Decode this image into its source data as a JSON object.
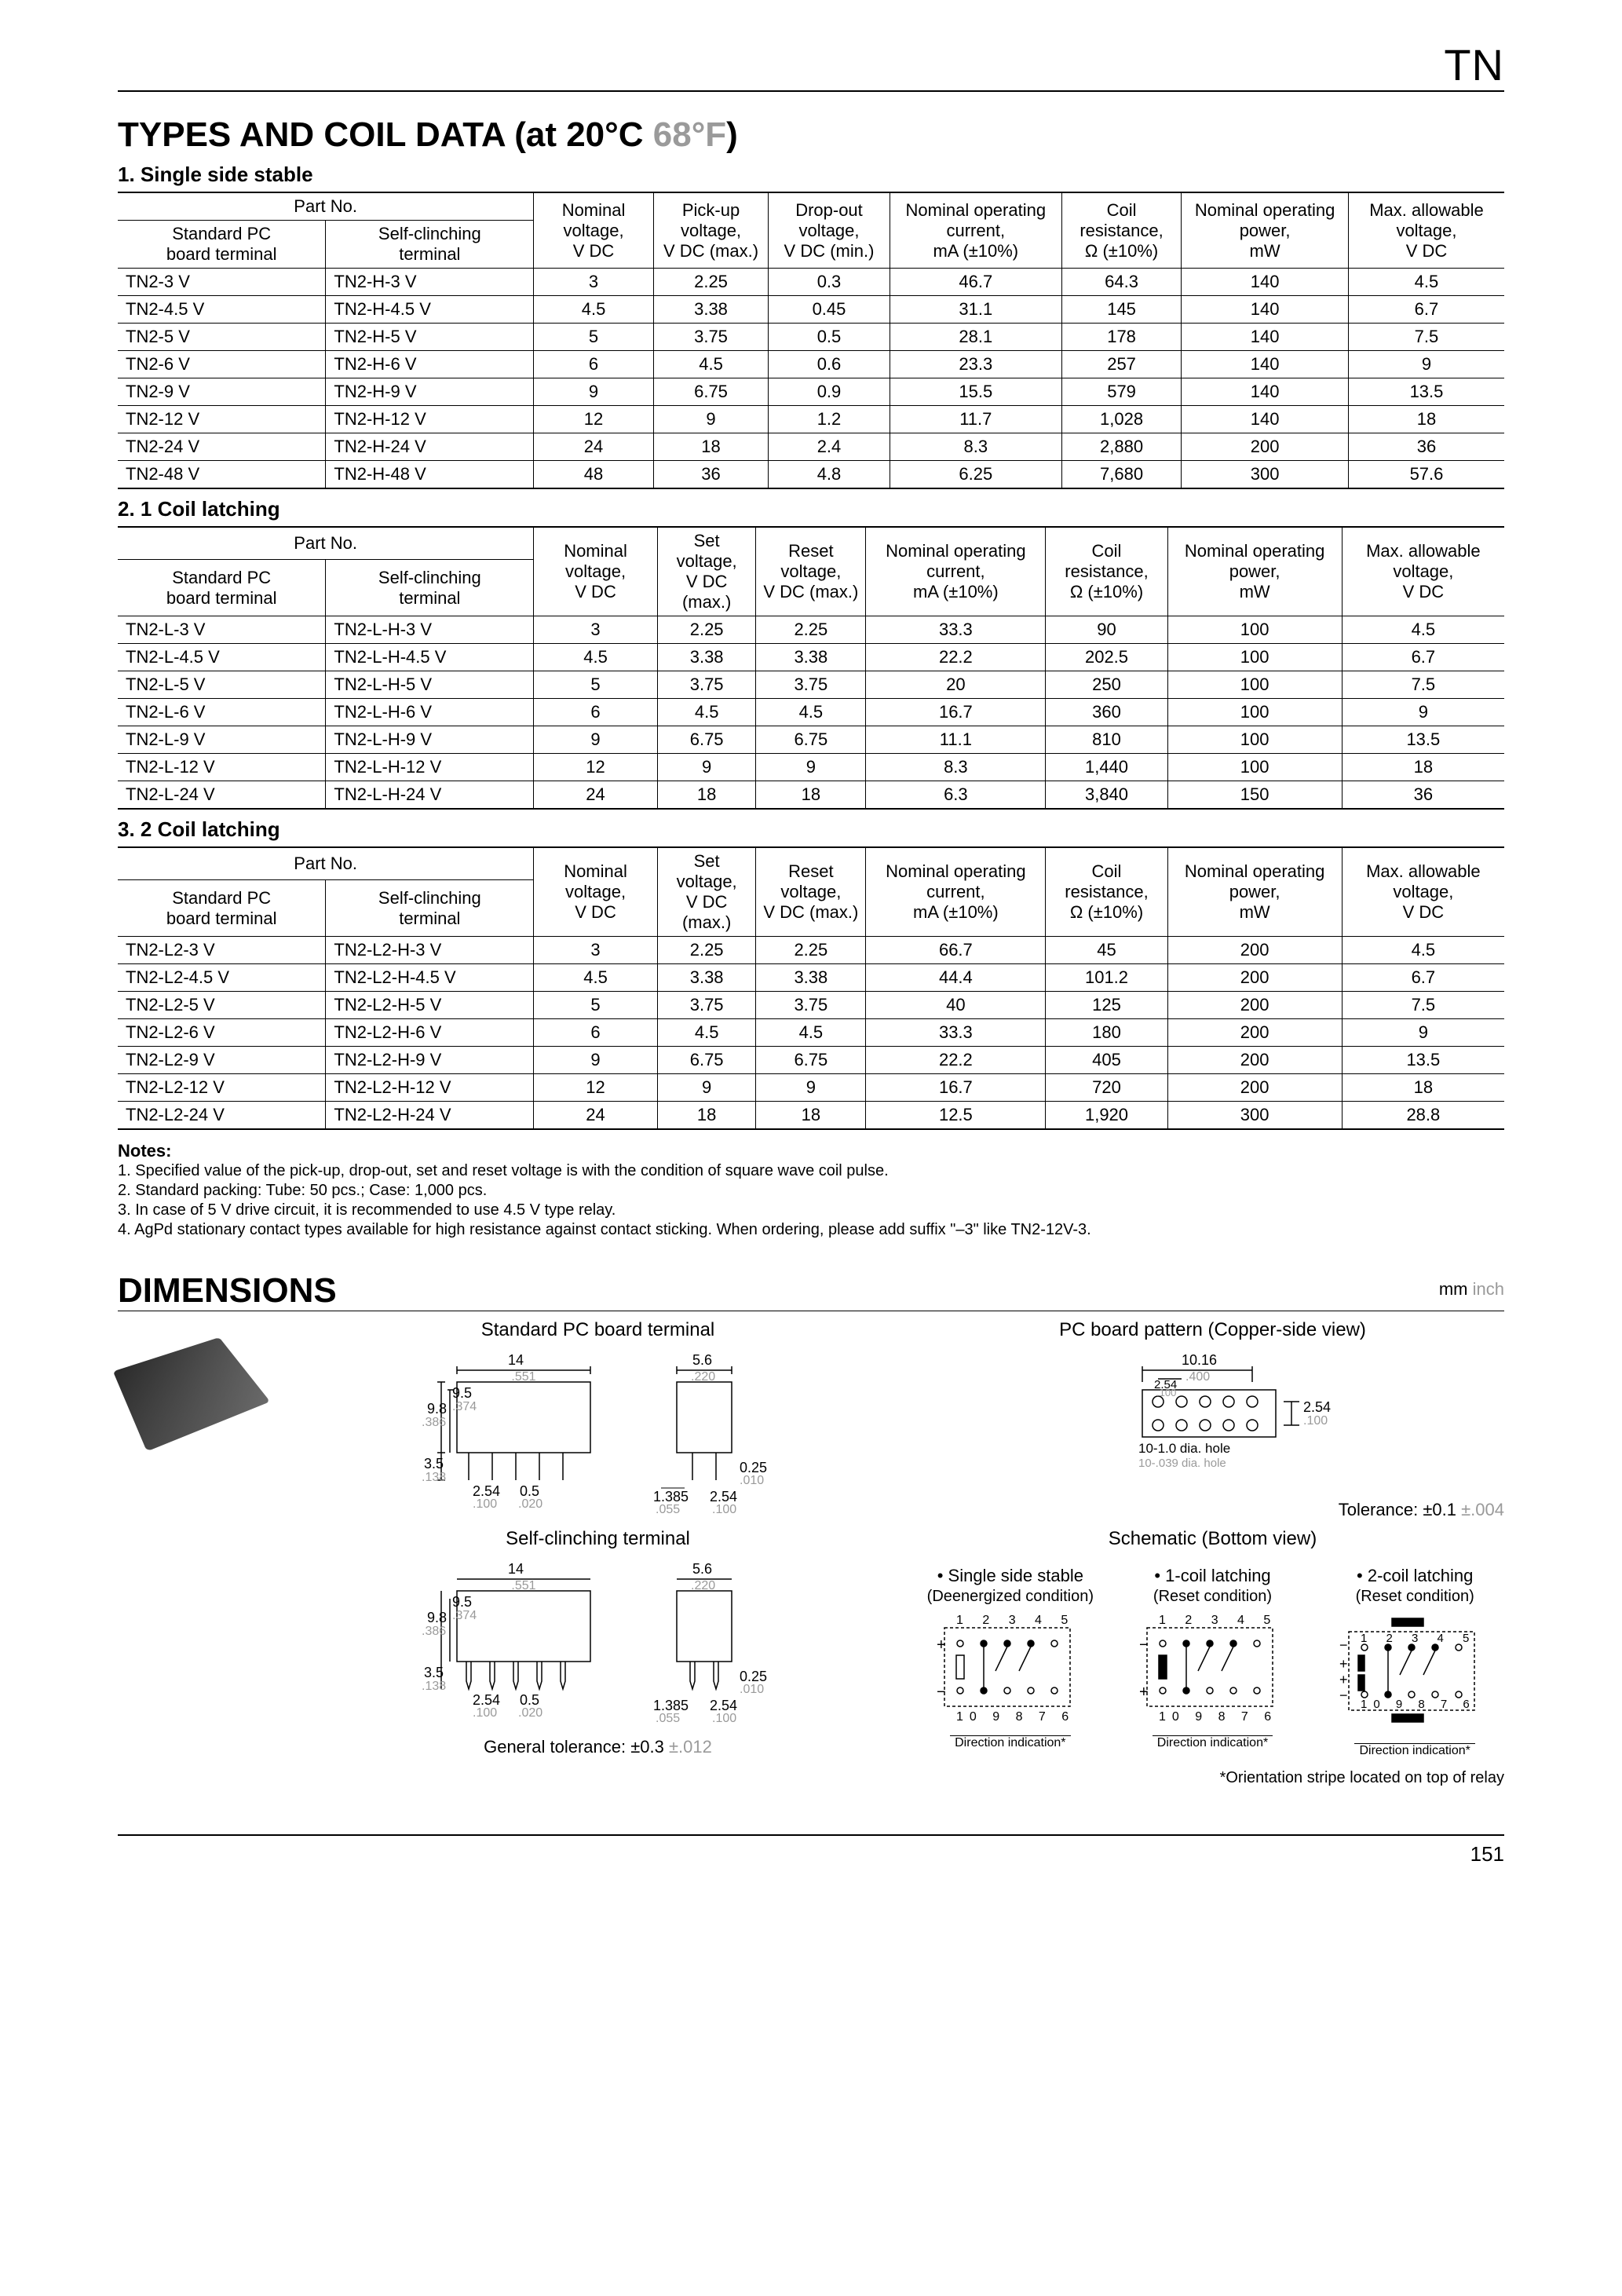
{
  "header_label": "TN",
  "title_main": "TYPES AND COIL DATA (at 20°C ",
  "title_grey": "68°F",
  "title_close": ")",
  "tables": [
    {
      "caption": "1. Single side stable",
      "partno_header": "Part No.",
      "sub_headers": [
        "Standard PC board terminal",
        "Self-clinching terminal"
      ],
      "cols": [
        "Nominal voltage, V DC",
        "Pick-up voltage, V DC (max.)",
        "Drop-out voltage, V DC (min.)",
        "Nominal operating current, mA (±10%)",
        "Coil resistance, Ω (±10%)",
        "Nominal operating power, mW",
        "Max. allowable voltage, V DC"
      ],
      "rows": [
        [
          "TN2-3 V",
          "TN2-H-3 V",
          "3",
          "2.25",
          "0.3",
          "46.7",
          "64.3",
          "140",
          "4.5"
        ],
        [
          "TN2-4.5 V",
          "TN2-H-4.5 V",
          "4.5",
          "3.38",
          "0.45",
          "31.1",
          "145",
          "140",
          "6.7"
        ],
        [
          "TN2-5 V",
          "TN2-H-5 V",
          "5",
          "3.75",
          "0.5",
          "28.1",
          "178",
          "140",
          "7.5"
        ],
        [
          "TN2-6 V",
          "TN2-H-6 V",
          "6",
          "4.5",
          "0.6",
          "23.3",
          "257",
          "140",
          "9"
        ],
        [
          "TN2-9 V",
          "TN2-H-9 V",
          "9",
          "6.75",
          "0.9",
          "15.5",
          "579",
          "140",
          "13.5"
        ],
        [
          "TN2-12 V",
          "TN2-H-12 V",
          "12",
          "9",
          "1.2",
          "11.7",
          "1,028",
          "140",
          "18"
        ],
        [
          "TN2-24 V",
          "TN2-H-24 V",
          "24",
          "18",
          "2.4",
          "8.3",
          "2,880",
          "200",
          "36"
        ],
        [
          "TN2-48 V",
          "TN2-H-48 V",
          "48",
          "36",
          "4.8",
          "6.25",
          "7,680",
          "300",
          "57.6"
        ]
      ]
    },
    {
      "caption": "2. 1 Coil latching",
      "partno_header": "Part No.",
      "sub_headers": [
        "Standard PC board terminal",
        "Self-clinching terminal"
      ],
      "cols": [
        "Nominal voltage, V DC",
        "Set voltage, V DC (max.)",
        "Reset voltage, V DC (max.)",
        "Nominal operating current, mA (±10%)",
        "Coil resistance, Ω (±10%)",
        "Nominal operating power, mW",
        "Max. allowable voltage, V DC"
      ],
      "rows": [
        [
          "TN2-L-3 V",
          "TN2-L-H-3 V",
          "3",
          "2.25",
          "2.25",
          "33.3",
          "90",
          "100",
          "4.5"
        ],
        [
          "TN2-L-4.5 V",
          "TN2-L-H-4.5 V",
          "4.5",
          "3.38",
          "3.38",
          "22.2",
          "202.5",
          "100",
          "6.7"
        ],
        [
          "TN2-L-5 V",
          "TN2-L-H-5 V",
          "5",
          "3.75",
          "3.75",
          "20",
          "250",
          "100",
          "7.5"
        ],
        [
          "TN2-L-6 V",
          "TN2-L-H-6 V",
          "6",
          "4.5",
          "4.5",
          "16.7",
          "360",
          "100",
          "9"
        ],
        [
          "TN2-L-9 V",
          "TN2-L-H-9 V",
          "9",
          "6.75",
          "6.75",
          "11.1",
          "810",
          "100",
          "13.5"
        ],
        [
          "TN2-L-12 V",
          "TN2-L-H-12 V",
          "12",
          "9",
          "9",
          "8.3",
          "1,440",
          "100",
          "18"
        ],
        [
          "TN2-L-24 V",
          "TN2-L-H-24 V",
          "24",
          "18",
          "18",
          "6.3",
          "3,840",
          "150",
          "36"
        ]
      ]
    },
    {
      "caption": "3. 2 Coil latching",
      "partno_header": "Part No.",
      "sub_headers": [
        "Standard PC board terminal",
        "Self-clinching terminal"
      ],
      "cols": [
        "Nominal voltage, V DC",
        "Set voltage, V DC (max.)",
        "Reset voltage, V DC (max.)",
        "Nominal operating current, mA (±10%)",
        "Coil resistance, Ω (±10%)",
        "Nominal operating power, mW",
        "Max. allowable voltage, V DC"
      ],
      "rows": [
        [
          "TN2-L2-3 V",
          "TN2-L2-H-3 V",
          "3",
          "2.25",
          "2.25",
          "66.7",
          "45",
          "200",
          "4.5"
        ],
        [
          "TN2-L2-4.5 V",
          "TN2-L2-H-4.5 V",
          "4.5",
          "3.38",
          "3.38",
          "44.4",
          "101.2",
          "200",
          "6.7"
        ],
        [
          "TN2-L2-5 V",
          "TN2-L2-H-5 V",
          "5",
          "3.75",
          "3.75",
          "40",
          "125",
          "200",
          "7.5"
        ],
        [
          "TN2-L2-6 V",
          "TN2-L2-H-6 V",
          "6",
          "4.5",
          "4.5",
          "33.3",
          "180",
          "200",
          "9"
        ],
        [
          "TN2-L2-9 V",
          "TN2-L2-H-9 V",
          "9",
          "6.75",
          "6.75",
          "22.2",
          "405",
          "200",
          "13.5"
        ],
        [
          "TN2-L2-12 V",
          "TN2-L2-H-12 V",
          "12",
          "9",
          "9",
          "16.7",
          "720",
          "200",
          "18"
        ],
        [
          "TN2-L2-24 V",
          "TN2-L2-H-24 V",
          "24",
          "18",
          "18",
          "12.5",
          "1,920",
          "300",
          "28.8"
        ]
      ]
    }
  ],
  "notes_head": "Notes:",
  "notes": [
    "1. Specified value of the pick-up, drop-out, set and reset voltage is with the condition of square wave coil pulse.",
    "2. Standard packing: Tube: 50 pcs.; Case: 1,000 pcs.",
    "3. In case of 5 V drive circuit, it is recommended to use 4.5 V type relay.",
    "4. AgPd stationary contact types available for high resistance against contact sticking. When ordering, please add suffix \"–3\" like TN2-12V-3."
  ],
  "dims_title": "DIMENSIONS",
  "mm_text": "mm",
  "inch_text": " inch",
  "std_title": "Standard PC board terminal",
  "self_title": "Self-clinching terminal",
  "pcb_title": "PC board pattern (Copper-side view)",
  "schem_head": "Schematic (Bottom view)",
  "schem1_title": "• Single side stable",
  "schem1_sub": "(Deenergized condition)",
  "schem2_title": "• 1-coil latching",
  "schem2_sub": "(Reset condition)",
  "schem3_title": "• 2-coil latching",
  "schem3_sub": "(Reset condition)",
  "tol_right": "Tolerance: ±0.1 ",
  "tol_right_grey": "±.004",
  "gen_tol": "General tolerance: ±0.3 ",
  "gen_tol_grey": "±.012",
  "orient_note": "*Orientation stripe located on top of relay",
  "page_num": "151",
  "dim_vals": {
    "top_w": "14",
    "top_w_g": ".551",
    "top_h1": "9.8",
    "top_h1_g": ".386",
    "top_h2": "9.5",
    "top_h2_g": ".374",
    "leg_h": "3.5",
    "leg_h_g": ".138",
    "pitch1": "2.54",
    "pitch1_g": ".100",
    "pitch2": "0.5",
    "pitch2_g": ".020",
    "side_w": "5.6",
    "side_w_g": ".220",
    "pin_t": "0.25",
    "pin_t_g": ".010",
    "bot_lead": "1.385",
    "bot_lead_g": ".055",
    "bot_pitch": "2.54",
    "bot_pitch_g": ".100",
    "pcb_w": "10.16",
    "pcb_w_g": ".400",
    "pcb_p": "2.54",
    "pcb_p_g": ".100",
    "pcb_vp": "2.54",
    "pcb_vp_g": ".100",
    "hole": "10-1.0 dia. hole",
    "hole_g": "10-.039 dia. hole",
    "dir_ind": "Direction indication*",
    "pins_top": "1 2 3 4 5",
    "pins_bot": "10 9 8 7 6"
  }
}
